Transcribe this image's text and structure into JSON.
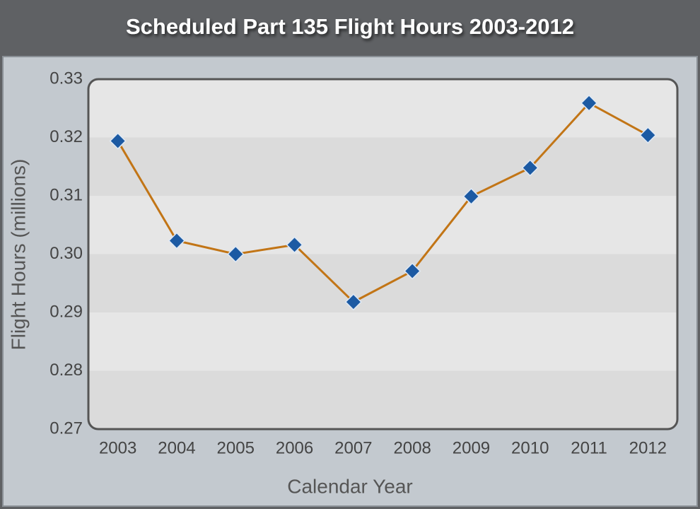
{
  "chart_data": {
    "type": "line",
    "title": "Scheduled Part 135 Flight Hours 2003-2012",
    "x_label": "Calendar Year",
    "y_label": "Flight Hours (millions)",
    "categories": [
      "2003",
      "2004",
      "2005",
      "2006",
      "2007",
      "2008",
      "2009",
      "2010",
      "2011",
      "2012"
    ],
    "values": [
      0.3194,
      0.3023,
      0.3,
      0.3016,
      0.2918,
      0.2971,
      0.3099,
      0.3148,
      0.3259,
      0.3204
    ],
    "color": "#c27516",
    "marker_color": "#1c5aa3",
    "ylim": [
      0.27,
      0.33
    ],
    "yticks": [
      0.27,
      0.28,
      0.29,
      {
        "value": 0.3,
        "label": "0.30"
      },
      0.31,
      0.32,
      0.33
    ],
    "grid": true
  }
}
